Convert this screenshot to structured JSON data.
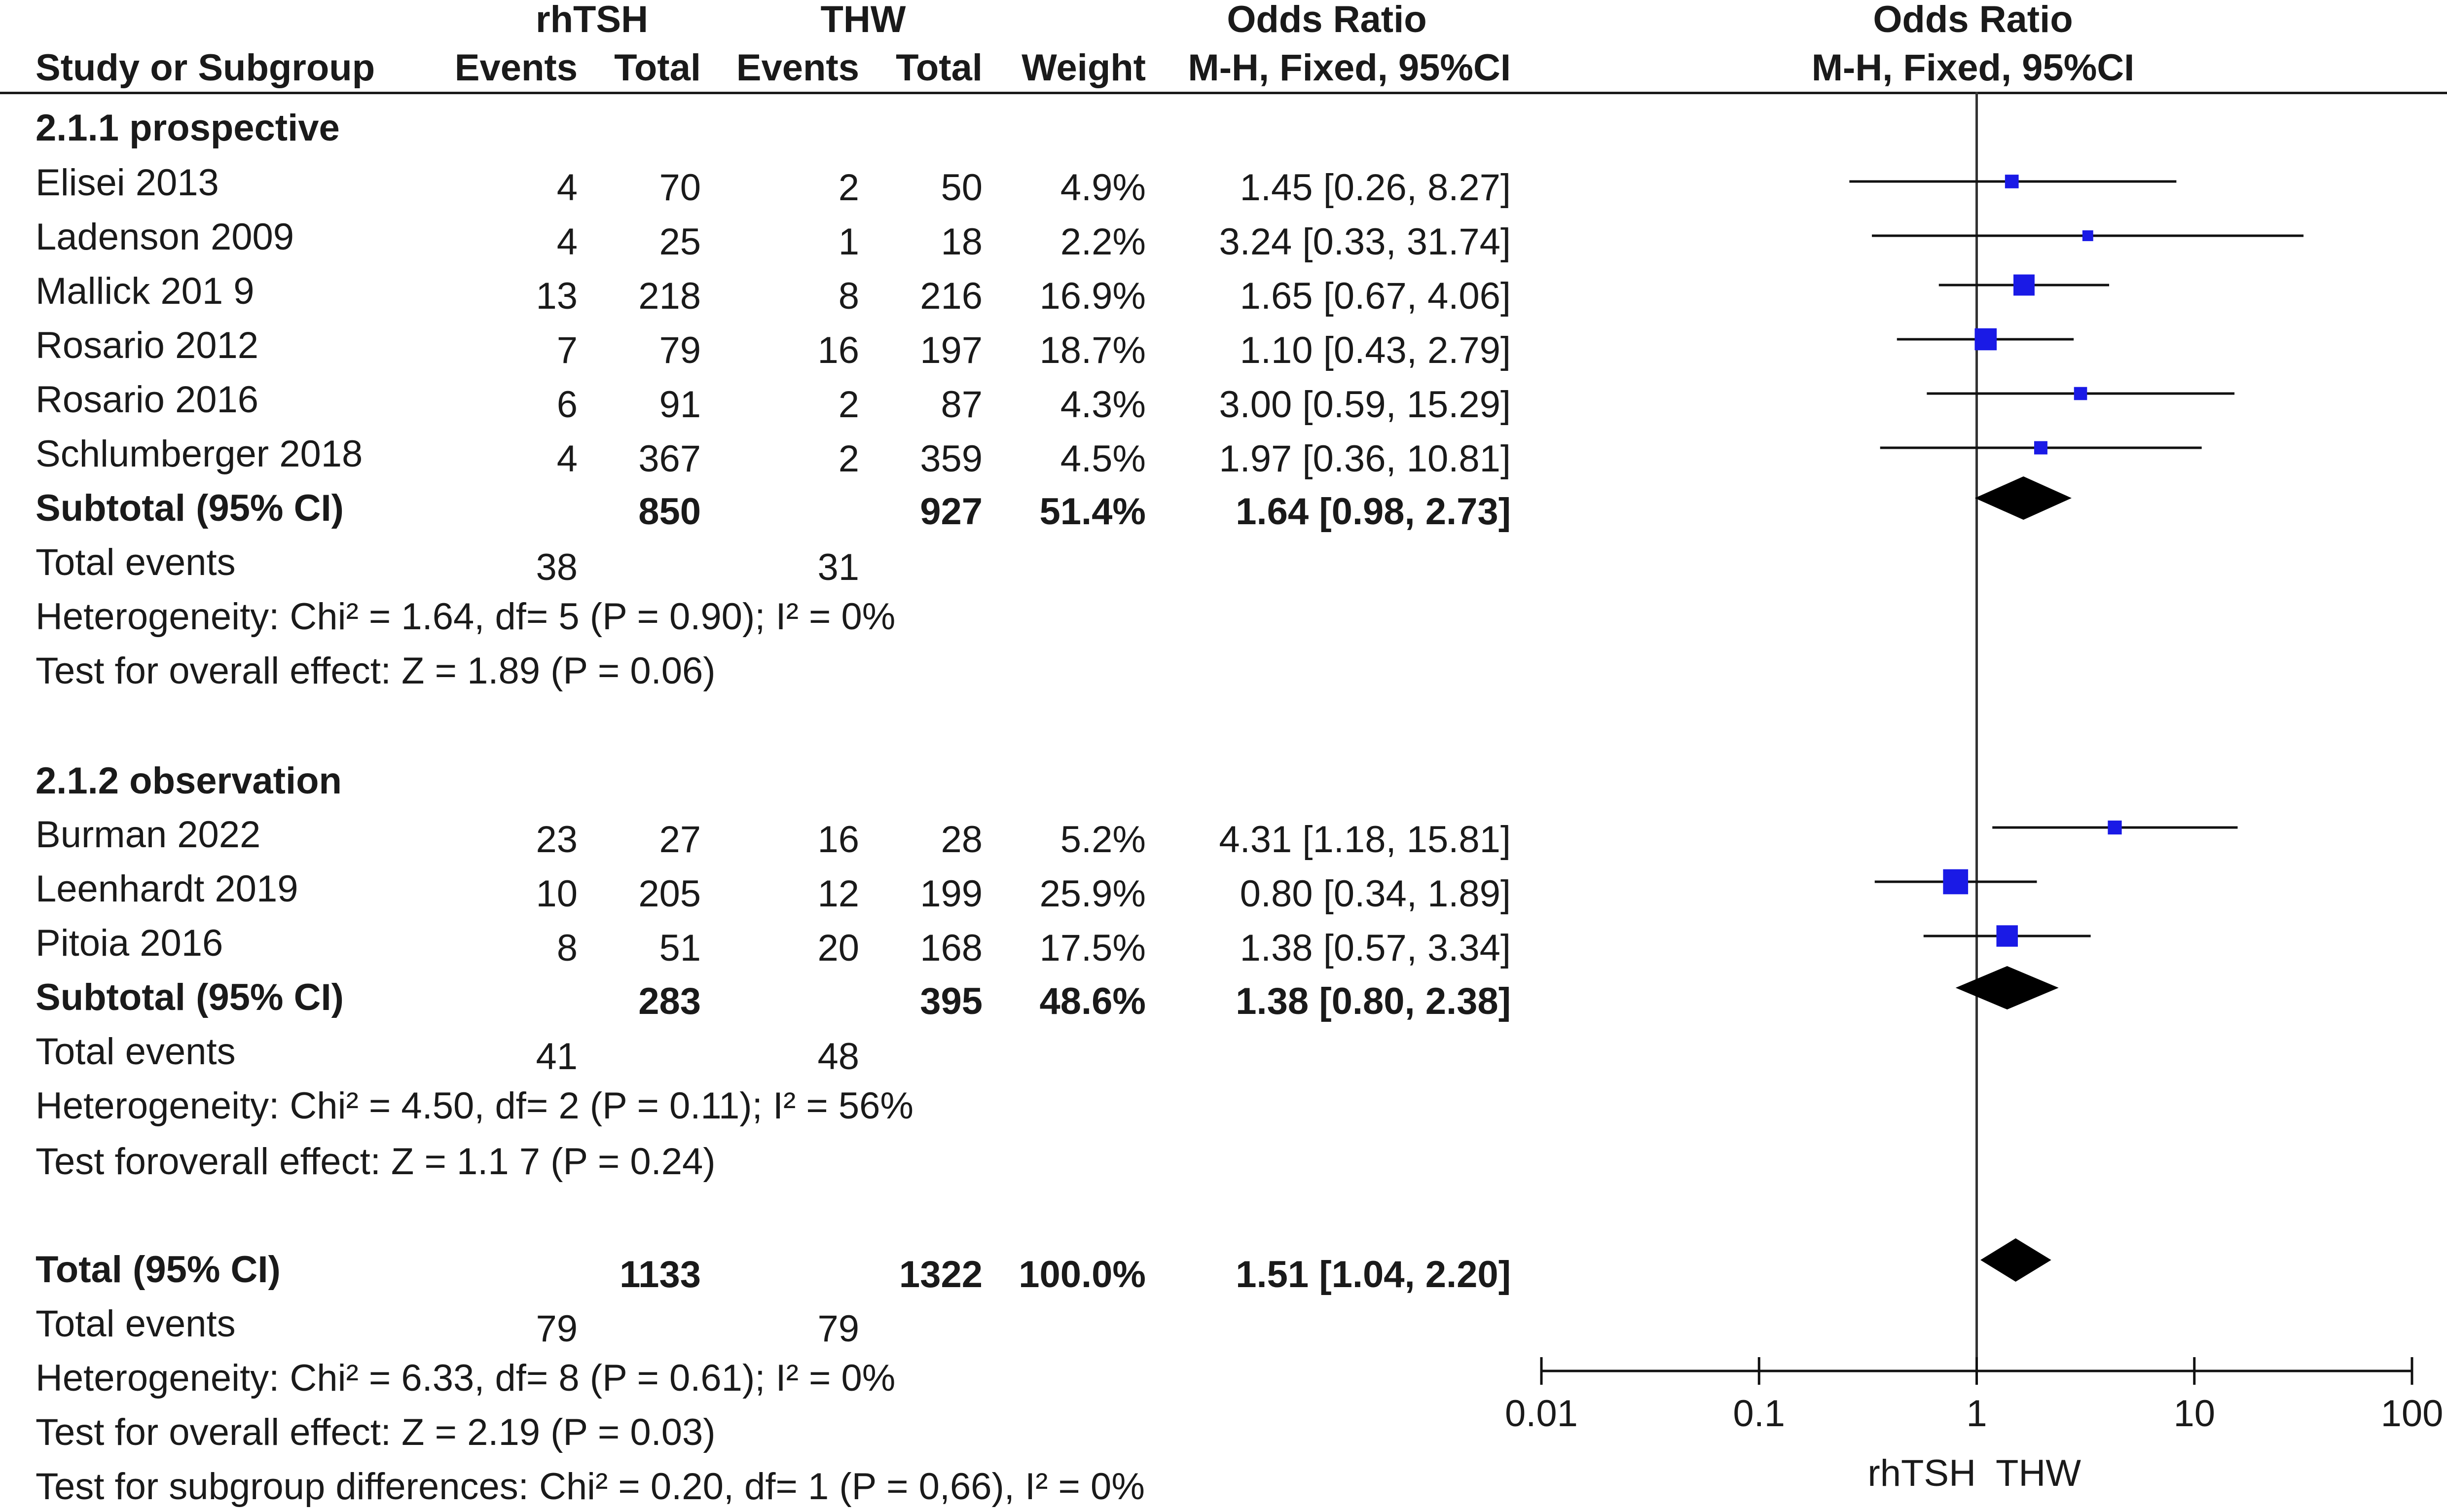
{
  "header": {
    "group1_name": "rhTSH",
    "group2_name": "THW",
    "or_title": "Odds Ratio",
    "plot_title": "Odds Ratio",
    "columns": {
      "study": "Study or Subgroup",
      "events1": "Events",
      "total1": "Total",
      "events2": "Events",
      "total2": "Total",
      "weight": "Weight",
      "method": "M-H, Fixed, 95%CI"
    },
    "plot_method": "M-H, Fixed, 95%CI"
  },
  "subgroups": [
    {
      "title": "2.1.1 prospective",
      "studies": [
        {
          "name": "Elisei 2013",
          "e1": "4",
          "t1": "70",
          "e2": "2",
          "t2": "50",
          "weight": "4.9%",
          "or_text": "1.45 [0.26, 8.27]"
        },
        {
          "name": "Ladenson 2009",
          "e1": "4",
          "t1": "25",
          "e2": "1",
          "t2": "18",
          "weight": "2.2%",
          "or_text": "3.24 [0.33, 31.74]"
        },
        {
          "name": "Mallick 201 9",
          "e1": "13",
          "t1": "218",
          "e2": "8",
          "t2": "216",
          "weight": "16.9%",
          "or_text": "1.65 [0.67, 4.06]"
        },
        {
          "name": "Rosario 2012",
          "e1": "7",
          "t1": "79",
          "e2": "16",
          "t2": "197",
          "weight": "18.7%",
          "or_text": "1.10 [0.43, 2.79]"
        },
        {
          "name": "Rosario 2016",
          "e1": "6",
          "t1": "91",
          "e2": "2",
          "t2": "87",
          "weight": "4.3%",
          "or_text": "3.00 [0.59, 15.29]"
        },
        {
          "name": "Schlumberger 2018",
          "e1": "4",
          "t1": "367",
          "e2": "2",
          "t2": "359",
          "weight": "4.5%",
          "or_text": "1.97 [0.36, 10.81]"
        }
      ],
      "subtotal": {
        "label": "Subtotal (95% CI)",
        "t1": "850",
        "t2": "927",
        "weight": "51.4%",
        "or_text": "1.64 [0.98, 2.73]"
      },
      "total_events": {
        "label": "Total events",
        "e1": "38",
        "e2": "31"
      },
      "heterogeneity": "Heterogeneity: Chi² = 1.64, df= 5 (P = 0.90); I² = 0%",
      "overall_effect": "Test for overall effect: Z = 1.89 (P = 0.06)"
    },
    {
      "title": "2.1.2 observation",
      "studies": [
        {
          "name": "Burman 2022",
          "e1": "23",
          "t1": "27",
          "e2": "16",
          "t2": "28",
          "weight": "5.2%",
          "or_text": "4.31 [1.18, 15.81]"
        },
        {
          "name": "Leenhardt 2019",
          "e1": "10",
          "t1": "205",
          "e2": "12",
          "t2": "199",
          "weight": "25.9%",
          "or_text": "0.80 [0.34, 1.89]"
        },
        {
          "name": "Pitoia 2016",
          "e1": "8",
          "t1": "51",
          "e2": "20",
          "t2": "168",
          "weight": "17.5%",
          "or_text": "1.38 [0.57, 3.34]"
        }
      ],
      "subtotal": {
        "label": "Subtotal (95% CI)",
        "t1": "283",
        "t2": "395",
        "weight": "48.6%",
        "or_text": "1.38 [0.80, 2.38]"
      },
      "total_events": {
        "label": "Total events",
        "e1": "41",
        "e2": "48"
      },
      "heterogeneity": "Heterogeneity: Chi² = 4.50, df= 2 (P = 0.11); I² = 56%",
      "overall_effect": "Test foroverall effect: Z = 1.1 7 (P = 0.24)"
    }
  ],
  "overall": {
    "label": "Total (95% CI)",
    "t1": "1133",
    "t2": "1322",
    "weight": "100.0%",
    "or_text": "1.51 [1.04, 2.20]",
    "total_events": {
      "label": "Total events",
      "e1": "79",
      "e2": "79"
    },
    "heterogeneity": "Heterogeneity: Chi² = 6.33, df= 8 (P = 0.61); I² = 0%",
    "overall_effect": "Test for overall effect: Z = 2.19 (P = 0.03)",
    "subgroup_diff": "Test for subgroup differences: Chi² = 0.20, df= 1 (P = 0,66), I² = 0%"
  },
  "axis": {
    "left_label": "rhTSH",
    "right_label": "THW"
  },
  "chart_data": {
    "type": "forest",
    "scale": "log",
    "xlim": [
      0.01,
      100
    ],
    "ticks": [
      {
        "value": 0.01,
        "label": "0.01"
      },
      {
        "value": 0.1,
        "label": "0.1"
      },
      {
        "value": 1,
        "label": "1"
      },
      {
        "value": 10,
        "label": "10"
      },
      {
        "value": 100,
        "label": "100"
      }
    ],
    "reference_line": 1,
    "study_color": "#1a1ae6",
    "diamond_color": "#000000",
    "studies": [
      {
        "name": "Elisei 2013",
        "or": 1.45,
        "lo": 0.26,
        "hi": 8.27,
        "weight": 4.9
      },
      {
        "name": "Ladenson 2009",
        "or": 3.24,
        "lo": 0.33,
        "hi": 31.74,
        "weight": 2.2
      },
      {
        "name": "Mallick 201 9",
        "or": 1.65,
        "lo": 0.67,
        "hi": 4.06,
        "weight": 16.9
      },
      {
        "name": "Rosario 2012",
        "or": 1.1,
        "lo": 0.43,
        "hi": 2.79,
        "weight": 18.7
      },
      {
        "name": "Rosario 2016",
        "or": 3.0,
        "lo": 0.59,
        "hi": 15.29,
        "weight": 4.3
      },
      {
        "name": "Schlumberger 2018",
        "or": 1.97,
        "lo": 0.36,
        "hi": 10.81,
        "weight": 4.5
      },
      {
        "name": "Burman 2022",
        "or": 4.31,
        "lo": 1.18,
        "hi": 15.81,
        "weight": 5.2
      },
      {
        "name": "Leenhardt 2019",
        "or": 0.8,
        "lo": 0.34,
        "hi": 1.89,
        "weight": 25.9
      },
      {
        "name": "Pitoia 2016",
        "or": 1.38,
        "lo": 0.57,
        "hi": 3.34,
        "weight": 17.5
      }
    ],
    "diamonds": [
      {
        "name": "Subtotal 2.1.1 prospective",
        "or": 1.64,
        "lo": 0.98,
        "hi": 2.73
      },
      {
        "name": "Subtotal 2.1.2 observation",
        "or": 1.38,
        "lo": 0.8,
        "hi": 2.38
      },
      {
        "name": "Total",
        "or": 1.51,
        "lo": 1.04,
        "hi": 2.2
      }
    ]
  }
}
